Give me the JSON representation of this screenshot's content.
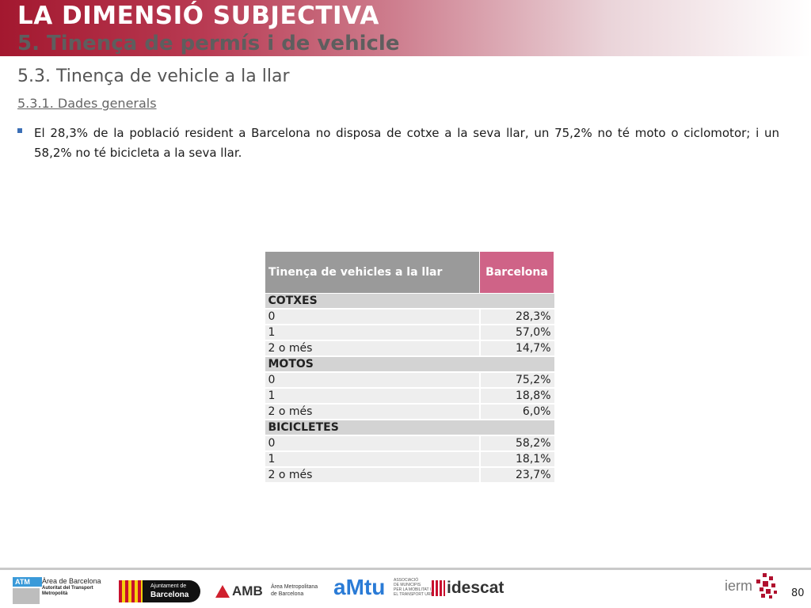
{
  "header": {
    "title": "LA DIMENSIÓ SUBJECTIVA",
    "subtitle": "5. Tinença de permís i de vehicle"
  },
  "section": {
    "title": "5.3. Tinença de vehicle a la llar",
    "subsection": "5.3.1. Dades generals"
  },
  "bullet": "El 28,3% de la població resident a Barcelona no disposa de cotxe a la seva llar, un 75,2% no té moto o ciclomotor; i un 58,2% no té bicicleta a la seva llar.",
  "table": {
    "header_col1": "Tinença de vehicles a la llar",
    "header_col2": "Barcelona",
    "groups": [
      {
        "name": "COTXES",
        "rows": [
          {
            "label": "0",
            "value": "28,3%"
          },
          {
            "label": "1",
            "value": "57,0%"
          },
          {
            "label": "2 o més",
            "value": "14,7%"
          }
        ]
      },
      {
        "name": "MOTOS",
        "rows": [
          {
            "label": "0",
            "value": "75,2%"
          },
          {
            "label": "1",
            "value": "18,8%"
          },
          {
            "label": "2 o més",
            "value": "6,0%"
          }
        ]
      },
      {
        "name": "BICICLETES",
        "rows": [
          {
            "label": "0",
            "value": "58,2%"
          },
          {
            "label": "1",
            "value": "18,1%"
          },
          {
            "label": "2 o més",
            "value": "23,7%"
          }
        ]
      }
    ]
  },
  "footer": {
    "logos": {
      "atm_badge": "ATM",
      "atm_line1": "Àrea de Barcelona",
      "atm_line2": "Autoritat del Transport",
      "atm_line3": "Metropolità",
      "ajuntament_line1": "Ajuntament de",
      "ajuntament_line2": "Barcelona",
      "amb_name": "AMB",
      "amb_line1": "Àrea Metropolitana",
      "amb_line2": "de Barcelona",
      "amtu_name": "aMtu",
      "amtu_line1": "ASSOCIACIÓ",
      "amtu_line2": "DE MUNICIPIS",
      "amtu_line3": "PER LA MOBILITAT I",
      "amtu_line4": "EL TRANSPORT URBÀ",
      "idescat_name": "idescat",
      "iermb_name": "ierm"
    },
    "page_number": "80"
  },
  "colors": {
    "header_red": "#a3182f",
    "table_header_gray": "#9a9a9a",
    "table_header_pink": "#cf6387",
    "bullet_blue": "#3b6fb6"
  }
}
